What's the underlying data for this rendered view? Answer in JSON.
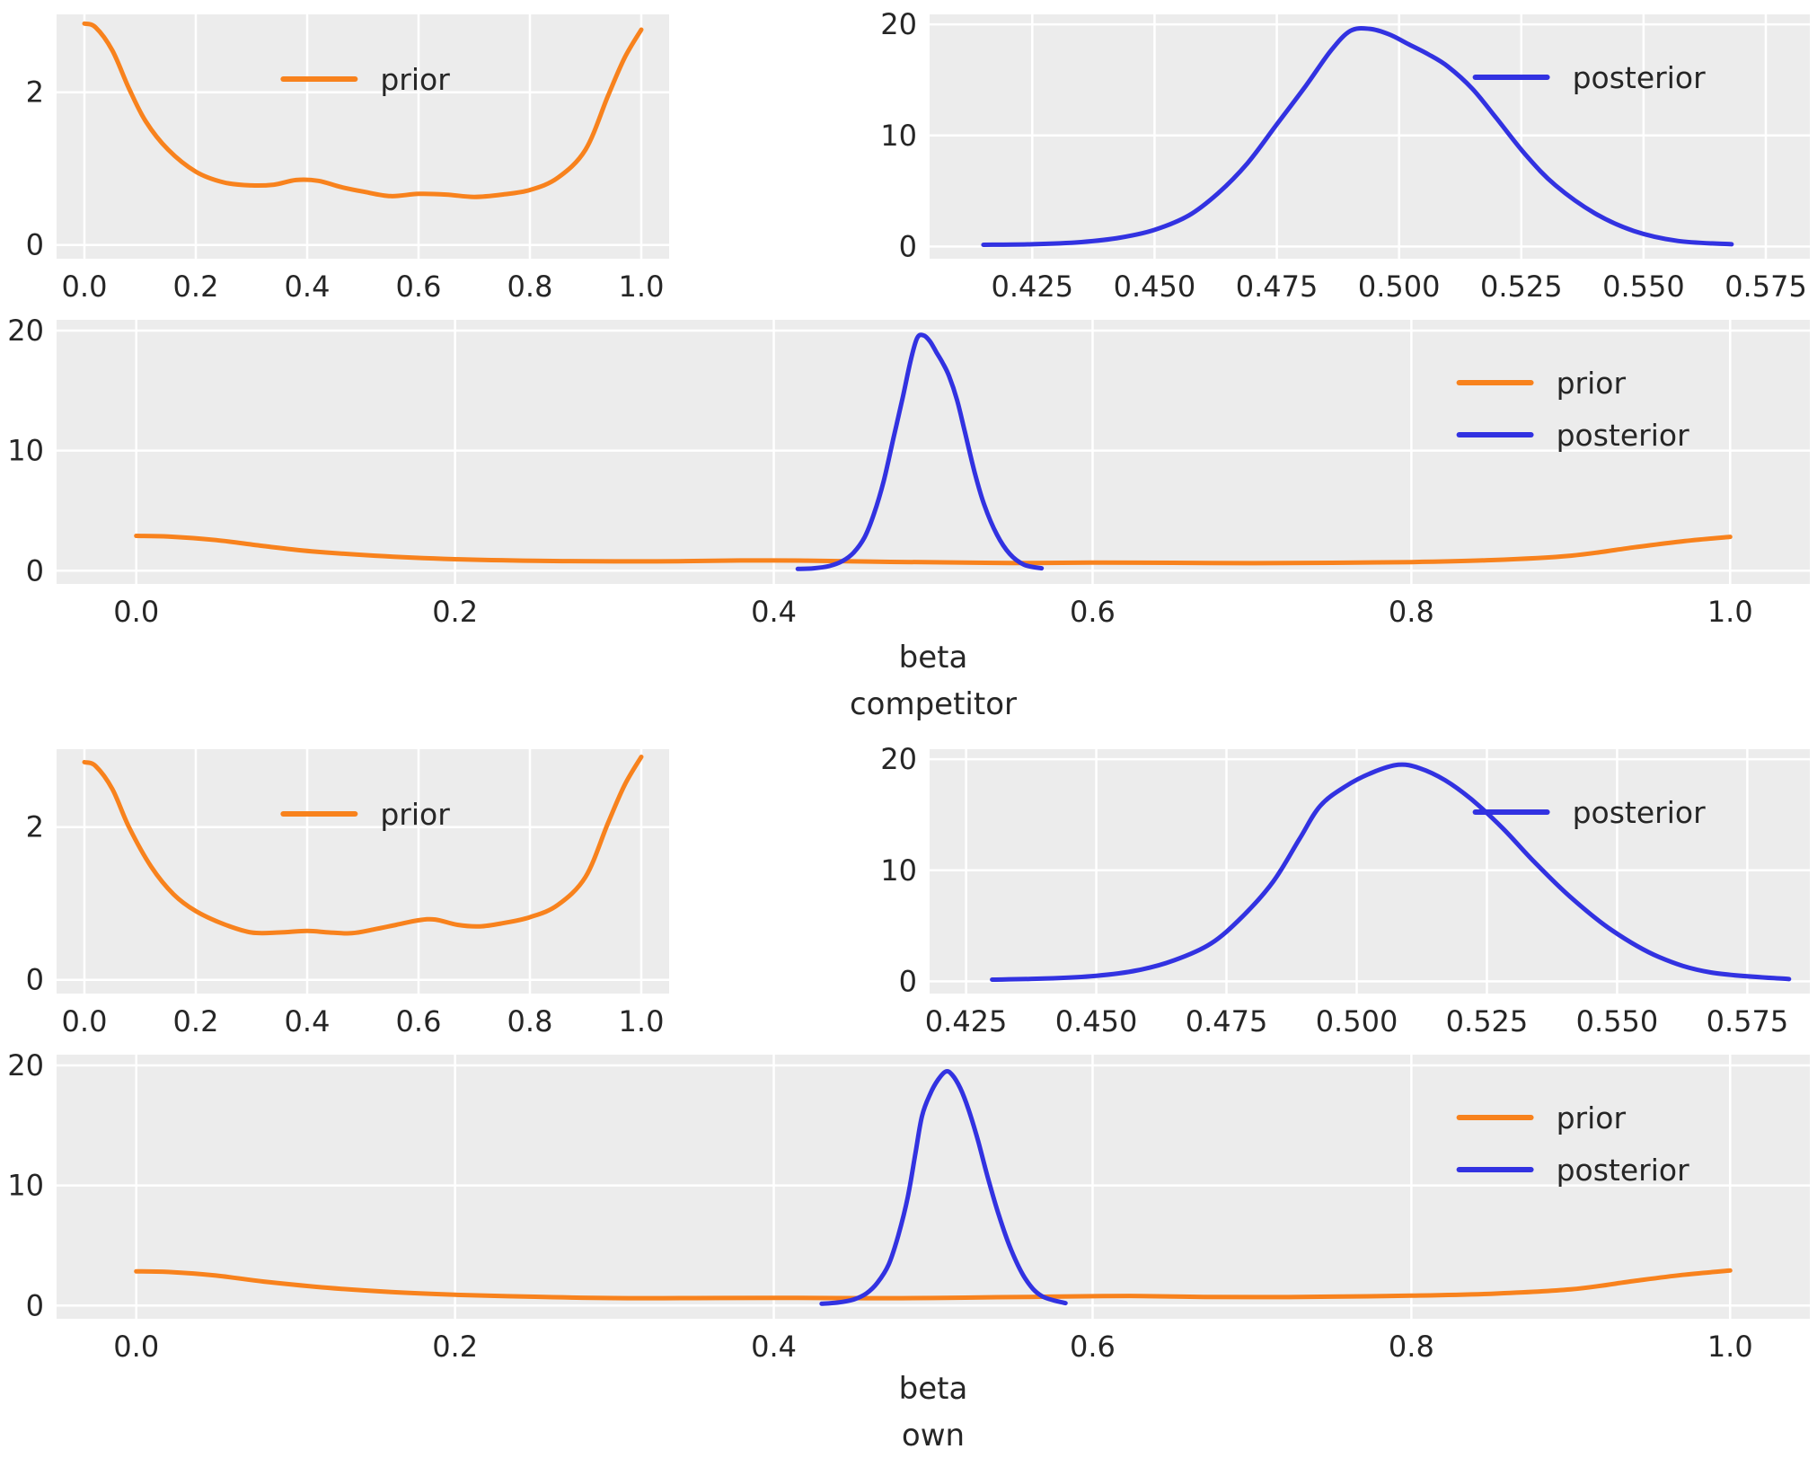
{
  "style": {
    "panel_bg": "#ececec",
    "grid_color": "#ffffff",
    "text_color": "#262626",
    "prior_color": "#f8821d",
    "posterior_color": "#3232e1"
  },
  "chart_data": [
    {
      "id": "prior-competitor",
      "type": "line",
      "title": "",
      "xlabel": "",
      "ylabel": "",
      "xlim": [
        -0.05,
        1.05
      ],
      "ylim": [
        -0.18,
        3.02
      ],
      "xticks": [
        0.0,
        0.2,
        0.4,
        0.6,
        0.8,
        1.0
      ],
      "xtick_labels": [
        "0.0",
        "0.2",
        "0.4",
        "0.6",
        "0.8",
        "1.0"
      ],
      "yticks": [
        0,
        2
      ],
      "ytick_labels": [
        "0",
        "2"
      ],
      "legend": {
        "x_frac": 0.37,
        "y": 72,
        "entries": [
          {
            "label": "prior",
            "color": "#f8821d"
          }
        ]
      },
      "series": [
        {
          "name": "prior",
          "color": "#f8821d",
          "points": [
            [
              0,
              2.9
            ],
            [
              0.02,
              2.85
            ],
            [
              0.05,
              2.55
            ],
            [
              0.08,
              2.05
            ],
            [
              0.11,
              1.62
            ],
            [
              0.15,
              1.25
            ],
            [
              0.2,
              0.96
            ],
            [
              0.25,
              0.82
            ],
            [
              0.3,
              0.78
            ],
            [
              0.34,
              0.79
            ],
            [
              0.38,
              0.85
            ],
            [
              0.42,
              0.84
            ],
            [
              0.46,
              0.76
            ],
            [
              0.5,
              0.7
            ],
            [
              0.55,
              0.64
            ],
            [
              0.6,
              0.67
            ],
            [
              0.65,
              0.66
            ],
            [
              0.7,
              0.63
            ],
            [
              0.75,
              0.66
            ],
            [
              0.8,
              0.72
            ],
            [
              0.85,
              0.88
            ],
            [
              0.9,
              1.25
            ],
            [
              0.94,
              1.95
            ],
            [
              0.97,
              2.45
            ],
            [
              1,
              2.82
            ]
          ]
        }
      ]
    },
    {
      "id": "posterior-competitor",
      "type": "line",
      "title": "",
      "xlabel": "",
      "ylabel": "",
      "xlim": [
        0.404,
        0.584
      ],
      "ylim": [
        -1.1,
        20.9
      ],
      "xticks": [
        0.425,
        0.45,
        0.475,
        0.5,
        0.525,
        0.55,
        0.575
      ],
      "xtick_labels": [
        "0.425",
        "0.450",
        "0.475",
        "0.500",
        "0.525",
        "0.550",
        "0.575"
      ],
      "yticks": [
        0,
        10,
        20
      ],
      "ytick_labels": [
        "0",
        "10",
        "20"
      ],
      "legend": {
        "x_frac": 0.62,
        "y": 70,
        "entries": [
          {
            "label": "posterior",
            "color": "#3232e1"
          }
        ]
      },
      "series": [
        {
          "name": "posterior",
          "color": "#3232e1",
          "points": [
            [
              0.415,
              0.15
            ],
            [
              0.425,
              0.2
            ],
            [
              0.435,
              0.4
            ],
            [
              0.443,
              0.8
            ],
            [
              0.45,
              1.5
            ],
            [
              0.457,
              2.8
            ],
            [
              0.463,
              4.8
            ],
            [
              0.469,
              7.5
            ],
            [
              0.475,
              11
            ],
            [
              0.481,
              14.5
            ],
            [
              0.486,
              17.6
            ],
            [
              0.49,
              19.4
            ],
            [
              0.494,
              19.6
            ],
            [
              0.498,
              19.1
            ],
            [
              0.502,
              18.2
            ],
            [
              0.506,
              17.3
            ],
            [
              0.51,
              16.2
            ],
            [
              0.515,
              14.2
            ],
            [
              0.52,
              11.5
            ],
            [
              0.526,
              8.2
            ],
            [
              0.532,
              5.5
            ],
            [
              0.54,
              3.0
            ],
            [
              0.548,
              1.4
            ],
            [
              0.557,
              0.5
            ],
            [
              0.568,
              0.2
            ]
          ]
        }
      ]
    },
    {
      "id": "combined-competitor",
      "type": "line",
      "title": "",
      "xlabel": "beta competitor",
      "xlabel_lines": [
        "beta",
        "competitor"
      ],
      "ylabel": "",
      "xlim": [
        -0.05,
        1.05
      ],
      "ylim": [
        -1.1,
        20.9
      ],
      "xticks": [
        0.0,
        0.2,
        0.4,
        0.6,
        0.8,
        1.0
      ],
      "xtick_labels": [
        "0.0",
        "0.2",
        "0.4",
        "0.6",
        "0.8",
        "1.0"
      ],
      "yticks": [
        0,
        10,
        20
      ],
      "ytick_labels": [
        "0",
        "10",
        "20"
      ],
      "legend": {
        "x_frac": 0.8,
        "y": 70,
        "entries": [
          {
            "label": "prior",
            "color": "#f8821d"
          },
          {
            "label": "posterior",
            "color": "#3232e1"
          }
        ]
      },
      "series": [
        {
          "name": "prior",
          "color": "#f8821d",
          "points": [
            [
              0,
              2.9
            ],
            [
              0.02,
              2.85
            ],
            [
              0.05,
              2.55
            ],
            [
              0.08,
              2.05
            ],
            [
              0.11,
              1.62
            ],
            [
              0.15,
              1.25
            ],
            [
              0.2,
              0.96
            ],
            [
              0.25,
              0.82
            ],
            [
              0.3,
              0.78
            ],
            [
              0.34,
              0.79
            ],
            [
              0.38,
              0.85
            ],
            [
              0.42,
              0.84
            ],
            [
              0.46,
              0.76
            ],
            [
              0.5,
              0.7
            ],
            [
              0.55,
              0.64
            ],
            [
              0.6,
              0.67
            ],
            [
              0.65,
              0.66
            ],
            [
              0.7,
              0.63
            ],
            [
              0.75,
              0.66
            ],
            [
              0.8,
              0.72
            ],
            [
              0.85,
              0.88
            ],
            [
              0.9,
              1.25
            ],
            [
              0.94,
              1.95
            ],
            [
              0.97,
              2.45
            ],
            [
              1,
              2.82
            ]
          ]
        },
        {
          "name": "posterior",
          "color": "#3232e1",
          "points": [
            [
              0.415,
              0.15
            ],
            [
              0.425,
              0.2
            ],
            [
              0.435,
              0.4
            ],
            [
              0.443,
              0.8
            ],
            [
              0.45,
              1.5
            ],
            [
              0.457,
              2.8
            ],
            [
              0.463,
              4.8
            ],
            [
              0.469,
              7.5
            ],
            [
              0.475,
              11
            ],
            [
              0.481,
              14.5
            ],
            [
              0.486,
              17.6
            ],
            [
              0.49,
              19.4
            ],
            [
              0.494,
              19.6
            ],
            [
              0.498,
              19.1
            ],
            [
              0.502,
              18.2
            ],
            [
              0.506,
              17.3
            ],
            [
              0.51,
              16.2
            ],
            [
              0.515,
              14.2
            ],
            [
              0.52,
              11.5
            ],
            [
              0.526,
              8.2
            ],
            [
              0.532,
              5.5
            ],
            [
              0.54,
              3.0
            ],
            [
              0.548,
              1.4
            ],
            [
              0.557,
              0.5
            ],
            [
              0.568,
              0.2
            ]
          ]
        }
      ]
    },
    {
      "id": "prior-own",
      "type": "line",
      "title": "",
      "xlabel": "",
      "ylabel": "",
      "xlim": [
        -0.05,
        1.05
      ],
      "ylim": [
        -0.18,
        3.02
      ],
      "xticks": [
        0.0,
        0.2,
        0.4,
        0.6,
        0.8,
        1.0
      ],
      "xtick_labels": [
        "0.0",
        "0.2",
        "0.4",
        "0.6",
        "0.8",
        "1.0"
      ],
      "yticks": [
        0,
        2
      ],
      "ytick_labels": [
        "0",
        "2"
      ],
      "legend": {
        "x_frac": 0.37,
        "y": 72,
        "entries": [
          {
            "label": "prior",
            "color": "#f8821d"
          }
        ]
      },
      "series": [
        {
          "name": "prior",
          "color": "#f8821d",
          "points": [
            [
              0,
              2.85
            ],
            [
              0.02,
              2.8
            ],
            [
              0.05,
              2.5
            ],
            [
              0.08,
              2.0
            ],
            [
              0.12,
              1.48
            ],
            [
              0.16,
              1.12
            ],
            [
              0.2,
              0.9
            ],
            [
              0.25,
              0.73
            ],
            [
              0.3,
              0.62
            ],
            [
              0.35,
              0.62
            ],
            [
              0.4,
              0.64
            ],
            [
              0.44,
              0.62
            ],
            [
              0.48,
              0.61
            ],
            [
              0.52,
              0.66
            ],
            [
              0.56,
              0.72
            ],
            [
              0.6,
              0.78
            ],
            [
              0.63,
              0.79
            ],
            [
              0.67,
              0.72
            ],
            [
              0.71,
              0.7
            ],
            [
              0.75,
              0.74
            ],
            [
              0.8,
              0.82
            ],
            [
              0.85,
              0.98
            ],
            [
              0.9,
              1.35
            ],
            [
              0.94,
              2.05
            ],
            [
              0.97,
              2.55
            ],
            [
              1,
              2.92
            ]
          ]
        }
      ]
    },
    {
      "id": "posterior-own",
      "type": "line",
      "title": "",
      "xlabel": "",
      "ylabel": "",
      "xlim": [
        0.418,
        0.587
      ],
      "ylim": [
        -1.1,
        20.9
      ],
      "xticks": [
        0.425,
        0.45,
        0.475,
        0.5,
        0.525,
        0.55,
        0.575
      ],
      "xtick_labels": [
        "0.425",
        "0.450",
        "0.475",
        "0.500",
        "0.525",
        "0.550",
        "0.575"
      ],
      "yticks": [
        0,
        10,
        20
      ],
      "ytick_labels": [
        "0",
        "10",
        "20"
      ],
      "legend": {
        "x_frac": 0.62,
        "y": 70,
        "entries": [
          {
            "label": "posterior",
            "color": "#3232e1"
          }
        ]
      },
      "series": [
        {
          "name": "posterior",
          "color": "#3232e1",
          "points": [
            [
              0.43,
              0.15
            ],
            [
              0.44,
              0.25
            ],
            [
              0.45,
              0.5
            ],
            [
              0.458,
              1.0
            ],
            [
              0.465,
              1.9
            ],
            [
              0.472,
              3.4
            ],
            [
              0.478,
              5.8
            ],
            [
              0.484,
              9.0
            ],
            [
              0.489,
              12.8
            ],
            [
              0.493,
              15.8
            ],
            [
              0.498,
              17.6
            ],
            [
              0.503,
              18.8
            ],
            [
              0.508,
              19.5
            ],
            [
              0.512,
              19.2
            ],
            [
              0.517,
              18.1
            ],
            [
              0.522,
              16.4
            ],
            [
              0.528,
              13.8
            ],
            [
              0.534,
              10.8
            ],
            [
              0.541,
              7.6
            ],
            [
              0.549,
              4.6
            ],
            [
              0.558,
              2.2
            ],
            [
              0.568,
              0.8
            ],
            [
              0.583,
              0.2
            ]
          ]
        }
      ]
    },
    {
      "id": "combined-own",
      "type": "line",
      "title": "",
      "xlabel": "beta own",
      "xlabel_lines": [
        "beta",
        "own"
      ],
      "ylabel": "",
      "xlim": [
        -0.05,
        1.05
      ],
      "ylim": [
        -1.1,
        20.9
      ],
      "xticks": [
        0.0,
        0.2,
        0.4,
        0.6,
        0.8,
        1.0
      ],
      "xtick_labels": [
        "0.0",
        "0.2",
        "0.4",
        "0.6",
        "0.8",
        "1.0"
      ],
      "yticks": [
        0,
        10,
        20
      ],
      "ytick_labels": [
        "0",
        "10",
        "20"
      ],
      "legend": {
        "x_frac": 0.8,
        "y": 70,
        "entries": [
          {
            "label": "prior",
            "color": "#f8821d"
          },
          {
            "label": "posterior",
            "color": "#3232e1"
          }
        ]
      },
      "series": [
        {
          "name": "prior",
          "color": "#f8821d",
          "points": [
            [
              0,
              2.85
            ],
            [
              0.02,
              2.8
            ],
            [
              0.05,
              2.5
            ],
            [
              0.08,
              2.0
            ],
            [
              0.12,
              1.48
            ],
            [
              0.16,
              1.12
            ],
            [
              0.2,
              0.9
            ],
            [
              0.25,
              0.73
            ],
            [
              0.3,
              0.62
            ],
            [
              0.35,
              0.62
            ],
            [
              0.4,
              0.64
            ],
            [
              0.44,
              0.62
            ],
            [
              0.48,
              0.61
            ],
            [
              0.52,
              0.66
            ],
            [
              0.56,
              0.72
            ],
            [
              0.6,
              0.78
            ],
            [
              0.63,
              0.79
            ],
            [
              0.67,
              0.72
            ],
            [
              0.71,
              0.7
            ],
            [
              0.75,
              0.74
            ],
            [
              0.8,
              0.82
            ],
            [
              0.85,
              0.98
            ],
            [
              0.9,
              1.35
            ],
            [
              0.94,
              2.05
            ],
            [
              0.97,
              2.55
            ],
            [
              1,
              2.92
            ]
          ]
        },
        {
          "name": "posterior",
          "color": "#3232e1",
          "points": [
            [
              0.43,
              0.15
            ],
            [
              0.44,
              0.25
            ],
            [
              0.45,
              0.5
            ],
            [
              0.458,
              1.0
            ],
            [
              0.465,
              1.9
            ],
            [
              0.472,
              3.4
            ],
            [
              0.478,
              5.8
            ],
            [
              0.484,
              9.0
            ],
            [
              0.489,
              12.8
            ],
            [
              0.493,
              15.8
            ],
            [
              0.498,
              17.6
            ],
            [
              0.503,
              18.8
            ],
            [
              0.508,
              19.5
            ],
            [
              0.512,
              19.2
            ],
            [
              0.517,
              18.1
            ],
            [
              0.522,
              16.4
            ],
            [
              0.528,
              13.8
            ],
            [
              0.534,
              10.8
            ],
            [
              0.541,
              7.6
            ],
            [
              0.549,
              4.6
            ],
            [
              0.558,
              2.2
            ],
            [
              0.568,
              0.8
            ],
            [
              0.583,
              0.2
            ]
          ]
        }
      ]
    }
  ]
}
